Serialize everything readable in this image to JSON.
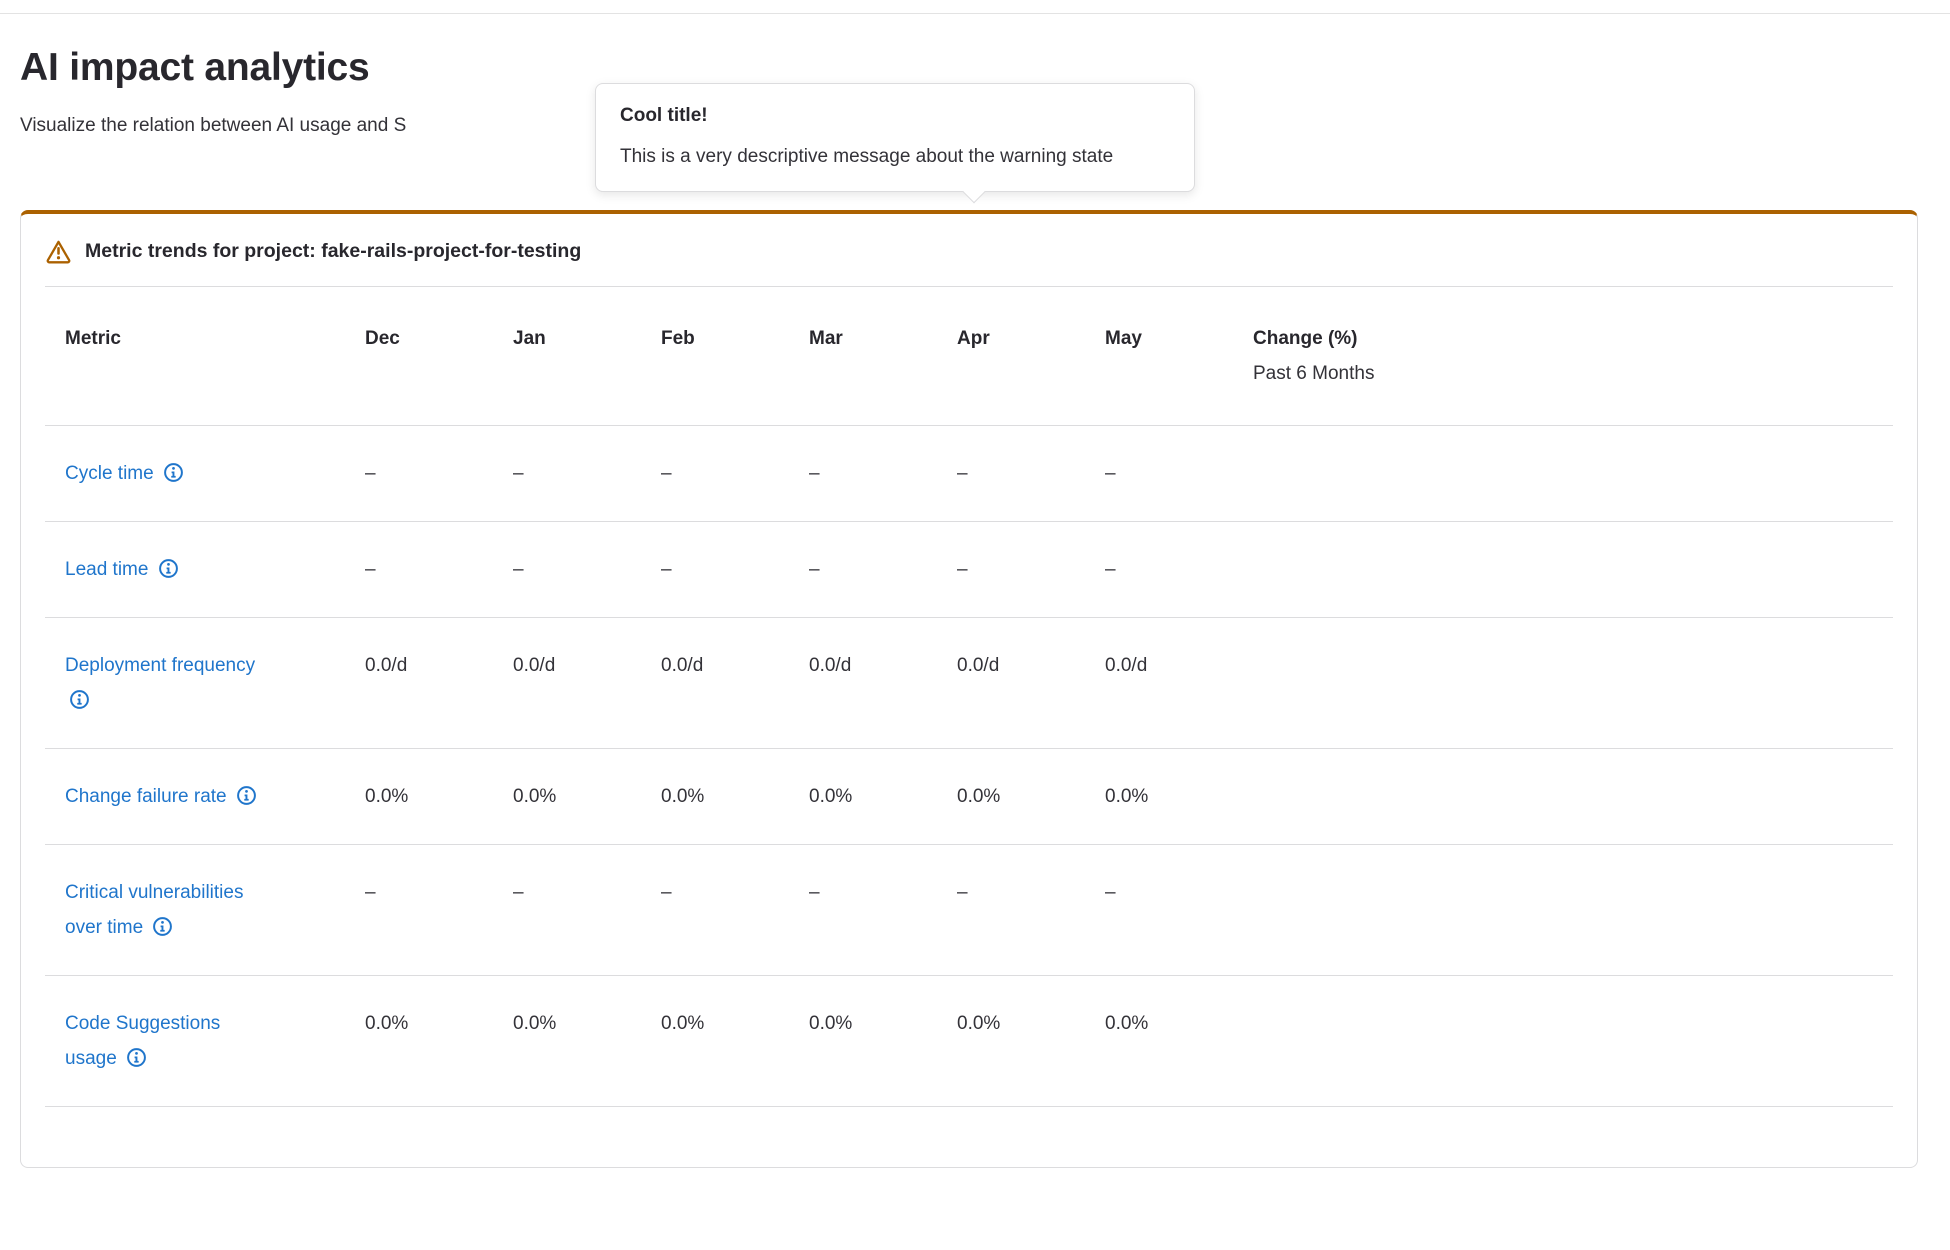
{
  "page": {
    "title": "AI impact analytics",
    "subtitle_visible": "Visualize the relation between AI usage and S"
  },
  "popover": {
    "title": "Cool title!",
    "message": "This is a very descriptive message about the warning state"
  },
  "card": {
    "header": "Metric trends for project: fake-rails-project-for-testing",
    "warning_icon": "warning-triangle-icon"
  },
  "table": {
    "columns": [
      "Metric",
      "Dec",
      "Jan",
      "Feb",
      "Mar",
      "Apr",
      "May"
    ],
    "change_column": {
      "line1": "Change (%)",
      "line2": "Past 6 Months"
    },
    "rows": [
      {
        "metric": "Cycle time",
        "info_icon": "info-icon",
        "values": [
          "–",
          "–",
          "–",
          "–",
          "–",
          "–"
        ],
        "change": ""
      },
      {
        "metric": "Lead time",
        "info_icon": "info-icon",
        "values": [
          "–",
          "–",
          "–",
          "–",
          "–",
          "–"
        ],
        "change": ""
      },
      {
        "metric": "Deployment frequency",
        "info_icon": "info-icon",
        "values": [
          "0.0/d",
          "0.0/d",
          "0.0/d",
          "0.0/d",
          "0.0/d",
          "0.0/d"
        ],
        "change": ""
      },
      {
        "metric": "Change failure rate",
        "info_icon": "info-icon",
        "values": [
          "0.0%",
          "0.0%",
          "0.0%",
          "0.0%",
          "0.0%",
          "0.0%"
        ],
        "change": ""
      },
      {
        "metric": "Critical vulnerabilities over time",
        "info_icon": "info-icon",
        "values": [
          "–",
          "–",
          "–",
          "–",
          "–",
          "–"
        ],
        "change": ""
      },
      {
        "metric": "Code Suggestions usage",
        "info_icon": "info-icon",
        "values": [
          "0.0%",
          "0.0%",
          "0.0%",
          "0.0%",
          "0.0%",
          "0.0%"
        ],
        "change": ""
      }
    ]
  },
  "colors": {
    "accent_warning": "#ab6100",
    "link_blue": "#1f75cb",
    "divider": "#dcdcde",
    "heading_text": "#28272d",
    "body_text": "#333238"
  }
}
